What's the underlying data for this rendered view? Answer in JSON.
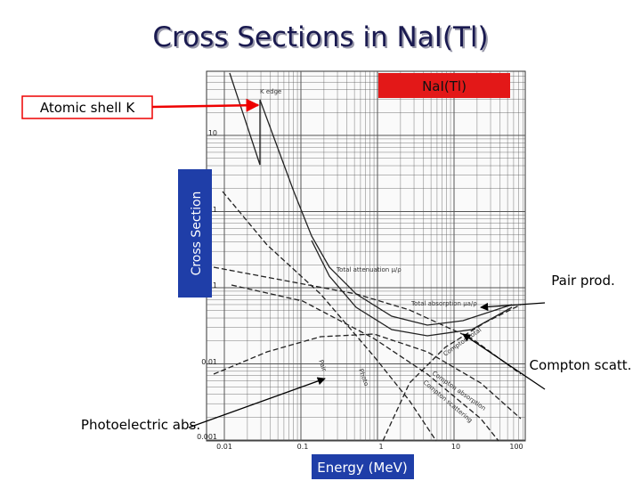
{
  "slide": {
    "title": "Cross Sections in NaI(Tl)",
    "material": "NaI(Tl)",
    "y_axis_label": "Cross Section",
    "x_axis_label": "Energy (MeV)",
    "callouts": [
      "Atomic shell K",
      "Pair prod.",
      "Compton scatt.",
      "Photoelectric abs."
    ],
    "plot": {
      "curve_labels": [
        "K edge",
        "Total attenuation μ/ρ",
        "Total absorption μa/ρ",
        "Compton total",
        "Compton absorption",
        "Compton scattering",
        "Pair",
        "Photo"
      ],
      "x_tick_labels": [
        "0.01",
        "0.1",
        "1",
        "10",
        "100"
      ],
      "y_tick_labels": [
        "10",
        "1",
        "0.1",
        "0.01",
        "0.001"
      ]
    }
  }
}
